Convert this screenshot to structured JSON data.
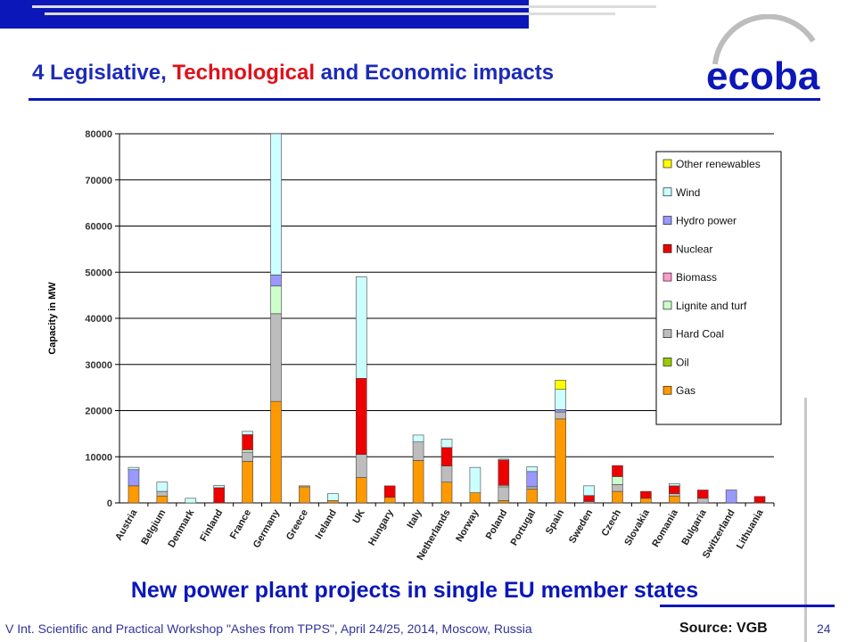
{
  "slide": {
    "title_parts": [
      "4  Legislative, ",
      "Technological",
      " and Economic impacts"
    ],
    "subtitle": "New power plant projects in single EU member states",
    "footer": "V Int. Scientific and Practical Workshop \"Ashes from TPPS\", April 24/25, 2014, Moscow, Russia",
    "source": "Source: VGB",
    "page_number": "24",
    "logo_text": "ecoba"
  },
  "chart_data": {
    "type": "bar",
    "stacked": true,
    "ylabel": "Capacity in MW",
    "ylim": [
      0,
      80000
    ],
    "yticks": [
      0,
      10000,
      20000,
      30000,
      40000,
      50000,
      60000,
      70000,
      80000
    ],
    "grid": true,
    "legend_position": "top-right",
    "categories": [
      "Austria",
      "Belgium",
      "Denmark",
      "Finland",
      "France",
      "Germany",
      "Greece",
      "Ireland",
      "UK",
      "Hungary",
      "Italy",
      "Netherlands",
      "Norway",
      "Poland",
      "Portugal",
      "Spain",
      "Sweden",
      "Czech",
      "Slovakia",
      "Romania",
      "Bulgaria",
      "Switzerland",
      "Lithuania"
    ],
    "series": [
      {
        "name": "Gas",
        "color": "#ff9900",
        "values": [
          3700,
          1500,
          0,
          0,
          9000,
          22000,
          3500,
          500,
          5500,
          1200,
          9200,
          4500,
          2200,
          500,
          3000,
          18200,
          0,
          2500,
          1000,
          1500,
          0,
          0,
          0
        ]
      },
      {
        "name": "Oil",
        "color": "#99cc00",
        "values": [
          0,
          0,
          0,
          0,
          0,
          0,
          0,
          0,
          0,
          0,
          0,
          0,
          0,
          0,
          0,
          0,
          0,
          0,
          0,
          0,
          0,
          0,
          0
        ]
      },
      {
        "name": "Hard Coal",
        "color": "#bdbdbd",
        "values": [
          0,
          1000,
          0,
          0,
          2000,
          19000,
          0,
          0,
          5000,
          0,
          4000,
          3500,
          0,
          3000,
          500,
          1500,
          300,
          1500,
          0,
          500,
          1000,
          0,
          0
        ]
      },
      {
        "name": "Lignite and turf",
        "color": "#ccffcc",
        "values": [
          0,
          0,
          0,
          0,
          500,
          6000,
          0,
          0,
          0,
          0,
          0,
          0,
          0,
          300,
          0,
          0,
          0,
          1700,
          0,
          0,
          0,
          0,
          0
        ]
      },
      {
        "name": "Biomass",
        "color": "#ff99cc",
        "values": [
          0,
          0,
          0,
          0,
          0,
          0,
          0,
          0,
          0,
          0,
          0,
          0,
          0,
          0,
          0,
          0,
          0,
          0,
          0,
          0,
          0,
          0,
          0
        ]
      },
      {
        "name": "Nuclear",
        "color": "#ee0000",
        "values": [
          0,
          0,
          0,
          3300,
          3300,
          0,
          0,
          0,
          16500,
          2500,
          0,
          4000,
          0,
          5500,
          0,
          0,
          1300,
          2400,
          1500,
          1700,
          1800,
          0,
          1400
        ]
      },
      {
        "name": "Hydro power",
        "color": "#9999ff",
        "values": [
          3500,
          0,
          0,
          0,
          0,
          2400,
          0,
          0,
          0,
          0,
          0,
          0,
          0,
          0,
          3300,
          500,
          0,
          0,
          0,
          0,
          0,
          2800,
          0
        ]
      },
      {
        "name": "Wind",
        "color": "#ccffff",
        "values": [
          500,
          2000,
          1000,
          500,
          700,
          31000,
          200,
          1500,
          22000,
          0,
          1500,
          1800,
          5500,
          200,
          1000,
          4400,
          2100,
          0,
          0,
          500,
          0,
          0,
          0
        ]
      },
      {
        "name": "Other renewables",
        "color": "#ffff00",
        "values": [
          0,
          0,
          0,
          0,
          0,
          0,
          0,
          0,
          0,
          0,
          0,
          0,
          0,
          0,
          0,
          2000,
          0,
          0,
          0,
          0,
          0,
          0,
          0
        ]
      }
    ]
  }
}
